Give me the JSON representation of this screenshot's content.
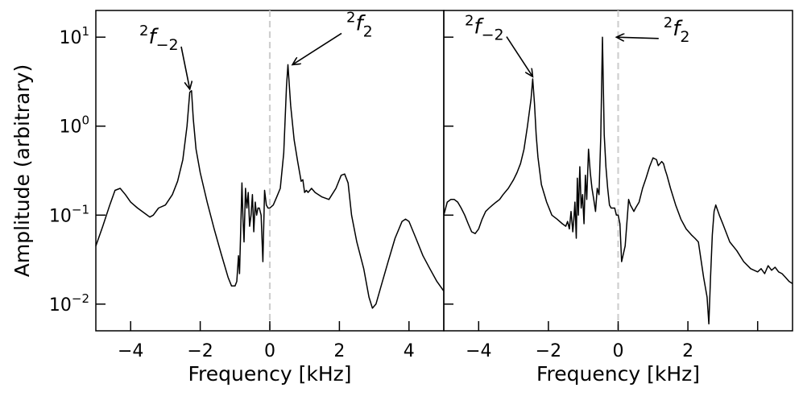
{
  "chart_data": [
    {
      "type": "line",
      "panel": "left",
      "xlabel": "Frequency [kHz]",
      "ylabel": "Amplitude (arbitrary)",
      "xlim": [
        -5,
        5
      ],
      "ylim_log10": [
        -2.3,
        1.3
      ],
      "yscale": "log",
      "x_ticks": [
        -4,
        -2,
        0,
        2,
        4
      ],
      "x_tick_labels": [
        "−4",
        "−2",
        "0",
        "2",
        "4"
      ],
      "y_ticks": [
        0.01,
        0.1,
        1,
        10
      ],
      "y_tick_labels": [
        {
          "base": "10",
          "exp": "−2"
        },
        {
          "base": "10",
          "exp": "−1"
        },
        {
          "base": "10",
          "exp": "0"
        },
        {
          "base": "10",
          "exp": "1"
        }
      ],
      "reference_line_x": 0,
      "annotations": [
        {
          "sup": "2",
          "base": "f",
          "sub": "−2",
          "text_at": [
            -3.75,
            8.5
          ],
          "arrow_to": [
            -2.3,
            2.6
          ]
        },
        {
          "sup": "2",
          "base": "f",
          "sub": "2",
          "text_at": [
            2.2,
            12
          ],
          "arrow_to": [
            0.65,
            4.9
          ]
        }
      ],
      "series": [
        {
          "x": [
            -5.0,
            -4.8,
            -4.6,
            -4.45,
            -4.3,
            -4.15,
            -4.0,
            -3.8,
            -3.6,
            -3.45,
            -3.35,
            -3.2,
            -3.0,
            -2.8,
            -2.65,
            -2.5,
            -2.38,
            -2.3,
            -2.25,
            -2.2,
            -2.12,
            -2.0,
            -1.8,
            -1.6,
            -1.4,
            -1.2,
            -1.1,
            -1.0,
            -0.95,
            -0.9,
            -0.87,
            -0.84,
            -0.8,
            -0.77,
            -0.74,
            -0.7,
            -0.66,
            -0.62,
            -0.58,
            -0.54,
            -0.5,
            -0.46,
            -0.42,
            -0.38,
            -0.34,
            -0.3,
            -0.25,
            -0.2,
            -0.15,
            -0.1,
            -0.05,
            0.0,
            0.1,
            0.2,
            0.3,
            0.4,
            0.48,
            0.52,
            0.6,
            0.7,
            0.8,
            0.9,
            0.95,
            1.0,
            1.05,
            1.1,
            1.2,
            1.3,
            1.5,
            1.7,
            1.9,
            2.05,
            2.15,
            2.25,
            2.35,
            2.5,
            2.7,
            2.85,
            2.95,
            3.05,
            3.2,
            3.4,
            3.6,
            3.8,
            3.9,
            4.0,
            4.2,
            4.4,
            4.6,
            4.8,
            5.0
          ],
          "y": [
            0.045,
            0.075,
            0.13,
            0.19,
            0.2,
            0.17,
            0.14,
            0.12,
            0.105,
            0.095,
            0.1,
            0.12,
            0.13,
            0.17,
            0.24,
            0.42,
            1.0,
            2.4,
            2.5,
            1.2,
            0.55,
            0.3,
            0.14,
            0.07,
            0.037,
            0.02,
            0.016,
            0.016,
            0.018,
            0.035,
            0.022,
            0.06,
            0.23,
            0.09,
            0.05,
            0.2,
            0.12,
            0.18,
            0.075,
            0.1,
            0.17,
            0.065,
            0.14,
            0.1,
            0.12,
            0.12,
            0.1,
            0.03,
            0.19,
            0.13,
            0.12,
            0.12,
            0.13,
            0.16,
            0.2,
            0.5,
            2.8,
            4.9,
            1.7,
            0.7,
            0.4,
            0.24,
            0.25,
            0.18,
            0.19,
            0.18,
            0.2,
            0.18,
            0.16,
            0.15,
            0.2,
            0.28,
            0.29,
            0.23,
            0.1,
            0.05,
            0.025,
            0.012,
            0.009,
            0.01,
            0.016,
            0.03,
            0.055,
            0.085,
            0.09,
            0.085,
            0.055,
            0.035,
            0.025,
            0.018,
            0.014
          ]
        }
      ]
    },
    {
      "type": "line",
      "panel": "right",
      "xlabel": "Frequency [kHz]",
      "xlim": [
        -5,
        5
      ],
      "ylim_log10": [
        -2.3,
        1.3
      ],
      "yscale": "log",
      "x_ticks": [
        -4,
        -2,
        0,
        2,
        4
      ],
      "x_tick_labels": [
        "−4",
        "−2",
        "0",
        "2",
        ""
      ],
      "y_ticks": [
        0.01,
        0.1,
        1,
        10
      ],
      "reference_line_x": 0,
      "annotations": [
        {
          "sup": "2",
          "base": "f",
          "sub": "−2",
          "text_at": [
            -4.4,
            11
          ],
          "arrow_to": [
            -2.45,
            3.6
          ]
        },
        {
          "sup": "2",
          "base": "f",
          "sub": "2",
          "text_at": [
            1.3,
            10.5
          ],
          "arrow_to": [
            -0.05,
            10
          ]
        }
      ],
      "series": [
        {
          "x": [
            -5.0,
            -4.9,
            -4.8,
            -4.7,
            -4.6,
            -4.5,
            -4.4,
            -4.3,
            -4.2,
            -4.1,
            -4.0,
            -3.9,
            -3.8,
            -3.7,
            -3.6,
            -3.5,
            -3.4,
            -3.3,
            -3.15,
            -3.0,
            -2.9,
            -2.8,
            -2.7,
            -2.6,
            -2.5,
            -2.45,
            -2.4,
            -2.35,
            -2.3,
            -2.2,
            -2.05,
            -1.9,
            -1.75,
            -1.6,
            -1.5,
            -1.45,
            -1.4,
            -1.35,
            -1.3,
            -1.27,
            -1.24,
            -1.2,
            -1.17,
            -1.14,
            -1.1,
            -1.06,
            -1.02,
            -0.98,
            -0.94,
            -0.9,
            -0.85,
            -0.8,
            -0.75,
            -0.7,
            -0.65,
            -0.6,
            -0.55,
            -0.5,
            -0.45,
            -0.4,
            -0.35,
            -0.3,
            -0.25,
            -0.2,
            -0.15,
            -0.1,
            -0.05,
            0.0,
            0.05,
            0.1,
            0.2,
            0.3,
            0.35,
            0.4,
            0.45,
            0.5,
            0.6,
            0.7,
            0.8,
            0.9,
            1.0,
            1.1,
            1.15,
            1.25,
            1.3,
            1.35,
            1.4,
            1.5,
            1.65,
            1.8,
            1.95,
            2.1,
            2.2,
            2.3,
            2.45,
            2.55,
            2.6,
            2.65,
            2.7,
            2.75,
            2.8,
            2.9,
            3.0,
            3.2,
            3.4,
            3.6,
            3.8,
            4.0,
            4.1,
            4.2,
            4.3,
            4.4,
            4.5,
            4.6,
            4.7,
            4.8,
            4.9,
            5.0
          ],
          "y": [
            0.1,
            0.14,
            0.15,
            0.15,
            0.14,
            0.12,
            0.1,
            0.08,
            0.065,
            0.062,
            0.07,
            0.09,
            0.11,
            0.12,
            0.13,
            0.14,
            0.15,
            0.17,
            0.2,
            0.25,
            0.3,
            0.38,
            0.55,
            1.0,
            2.0,
            3.4,
            1.8,
            0.8,
            0.45,
            0.22,
            0.14,
            0.1,
            0.09,
            0.08,
            0.075,
            0.085,
            0.07,
            0.11,
            0.065,
            0.09,
            0.14,
            0.055,
            0.26,
            0.1,
            0.35,
            0.12,
            0.17,
            0.08,
            0.28,
            0.15,
            0.55,
            0.3,
            0.2,
            0.15,
            0.11,
            0.2,
            0.17,
            0.75,
            10.0,
            0.8,
            0.35,
            0.2,
            0.13,
            0.12,
            0.12,
            0.12,
            0.1,
            0.1,
            0.08,
            0.03,
            0.045,
            0.15,
            0.13,
            0.12,
            0.11,
            0.12,
            0.14,
            0.2,
            0.26,
            0.35,
            0.44,
            0.42,
            0.36,
            0.4,
            0.38,
            0.32,
            0.28,
            0.2,
            0.13,
            0.09,
            0.07,
            0.06,
            0.055,
            0.05,
            0.02,
            0.012,
            0.006,
            0.02,
            0.06,
            0.11,
            0.13,
            0.1,
            0.08,
            0.05,
            0.04,
            0.03,
            0.025,
            0.023,
            0.025,
            0.022,
            0.027,
            0.024,
            0.026,
            0.023,
            0.022,
            0.02,
            0.018,
            0.017
          ]
        }
      ]
    }
  ]
}
